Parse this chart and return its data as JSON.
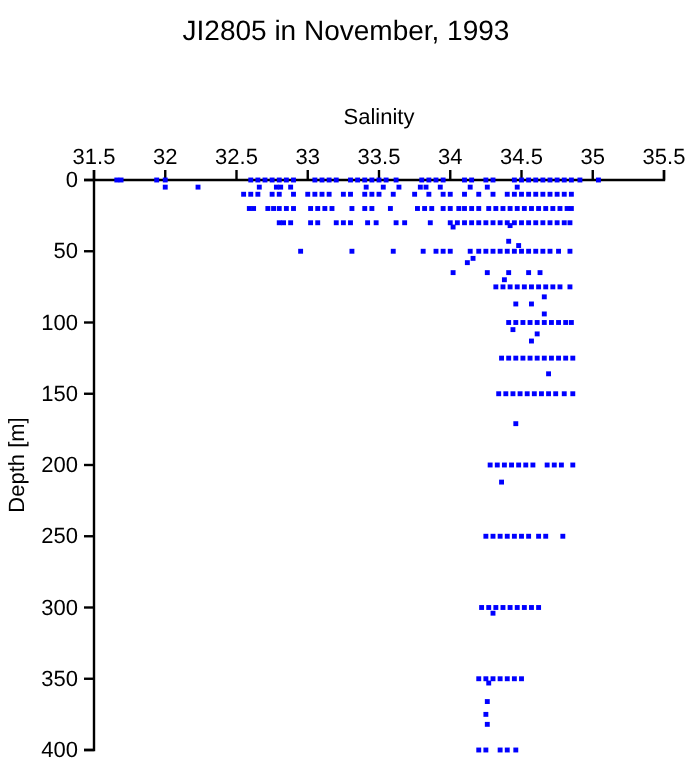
{
  "chart_data": {
    "type": "scatter",
    "title": "JI2805 in November, 1993",
    "xlabel": "Salinity",
    "ylabel": "Depth [m]",
    "xlim": [
      31.5,
      35.5
    ],
    "xticks": [
      31.5,
      32,
      32.5,
      33,
      33.5,
      34,
      34.5,
      35,
      35.5
    ],
    "ylim": [
      400,
      0
    ],
    "yticks": [
      0,
      50,
      100,
      150,
      200,
      250,
      300,
      350,
      400
    ],
    "grid": false,
    "marker": "square",
    "series": [
      {
        "color": "#0000ff",
        "x": [
          31.66,
          31.69,
          31.94,
          32.0,
          32.6,
          32.65,
          32.7,
          32.75,
          32.8,
          32.85,
          32.9,
          33.05,
          33.1,
          33.15,
          33.2,
          33.3,
          33.35,
          33.4,
          33.45,
          33.5,
          33.55,
          33.62,
          33.8,
          33.85,
          33.9,
          33.95,
          34.1,
          34.15,
          34.25,
          34.3,
          34.45,
          34.5,
          34.55,
          34.6,
          34.65,
          34.7,
          34.75,
          34.8,
          34.85,
          34.91,
          35.04
        ],
        "values": [
          0,
          0,
          0,
          0,
          0,
          0,
          0,
          0,
          0,
          0,
          0,
          0,
          0,
          0,
          0,
          0,
          0,
          0,
          0,
          0,
          0,
          0,
          0,
          0,
          0,
          0,
          0,
          0,
          0,
          0,
          0,
          0,
          0,
          0,
          0,
          0,
          0,
          0,
          0,
          0,
          0
        ]
      },
      {
        "color": "#0000ff",
        "x": [
          32.0,
          32.23,
          32.66,
          32.78,
          32.81,
          32.88,
          33.41,
          33.53,
          33.64,
          33.79,
          33.83,
          33.93,
          34.14,
          34.26,
          34.47
        ],
        "values": [
          5,
          5,
          5,
          5,
          5,
          5,
          5,
          5,
          5,
          5,
          5,
          5,
          5,
          5,
          5
        ]
      },
      {
        "color": "#0000ff",
        "x": [
          32.55,
          32.6,
          32.65,
          32.75,
          32.8,
          32.9,
          33.0,
          33.05,
          33.1,
          33.15,
          33.25,
          33.3,
          33.4,
          33.45,
          33.5,
          33.6,
          33.75,
          33.85,
          33.95,
          34.0,
          34.1,
          34.2,
          34.3,
          34.4,
          34.45,
          34.5,
          34.55,
          34.6,
          34.65,
          34.7,
          34.75,
          34.8,
          34.85
        ],
        "values": [
          10,
          10,
          10,
          10,
          10,
          10,
          10,
          10,
          10,
          10,
          10,
          10,
          10,
          10,
          10,
          10,
          10,
          10,
          10,
          10,
          10,
          10,
          10,
          10,
          10,
          10,
          10,
          10,
          10,
          10,
          10,
          10,
          10
        ]
      },
      {
        "color": "#0000ff",
        "x": [
          32.59,
          32.62,
          32.72,
          32.76,
          32.8,
          32.85,
          32.9,
          33.02,
          33.07,
          33.12,
          33.17,
          33.31,
          33.4,
          33.45,
          33.58,
          33.77,
          33.82,
          33.87,
          33.95,
          34.0,
          34.06,
          34.1,
          34.15,
          34.2,
          34.27,
          34.32,
          34.37,
          34.42,
          34.47,
          34.52,
          34.57,
          34.62,
          34.67,
          34.72,
          34.77,
          34.82,
          34.85
        ],
        "values": [
          20,
          20,
          20,
          20,
          20,
          20,
          20,
          20,
          20,
          20,
          20,
          20,
          20,
          20,
          20,
          20,
          20,
          20,
          20,
          20,
          20,
          20,
          20,
          20,
          20,
          20,
          20,
          20,
          20,
          20,
          20,
          20,
          20,
          20,
          20,
          20,
          20
        ]
      },
      {
        "color": "#0000ff",
        "x": [
          32.8,
          32.83,
          32.88,
          33.02,
          33.07,
          33.2,
          33.25,
          33.3,
          33.42,
          33.48,
          33.62,
          33.68,
          33.86,
          34.0,
          34.05,
          34.1,
          34.15,
          34.2,
          34.25,
          34.3,
          34.35,
          34.4,
          34.45,
          34.5,
          34.55,
          34.6,
          34.65,
          34.7,
          34.75,
          34.8,
          34.84
        ],
        "values": [
          30,
          30,
          30,
          30,
          30,
          30,
          30,
          30,
          30,
          30,
          30,
          30,
          30,
          30,
          30,
          30,
          30,
          30,
          30,
          30,
          30,
          30,
          30,
          30,
          30,
          30,
          30,
          30,
          30,
          30,
          30
        ]
      },
      {
        "color": "#0000ff",
        "x": [
          34.02,
          34.42,
          34.41,
          34.48,
          34.16,
          34.12,
          34.02,
          34.26,
          34.41,
          34.55,
          34.63,
          34.38
        ],
        "values": [
          33,
          32,
          43,
          46,
          55,
          58,
          65,
          65,
          65,
          65,
          65,
          70
        ]
      },
      {
        "color": "#0000ff",
        "x": [
          32.95,
          33.31,
          33.6,
          33.81,
          33.9,
          33.95,
          34.0,
          34.14,
          34.2,
          34.25,
          34.3,
          34.35,
          34.4,
          34.45,
          34.5,
          34.55,
          34.6,
          34.65,
          34.7,
          34.76,
          34.84
        ],
        "values": [
          50,
          50,
          50,
          50,
          50,
          50,
          50,
          50,
          50,
          50,
          50,
          50,
          50,
          50,
          50,
          50,
          50,
          50,
          50,
          50,
          50
        ]
      },
      {
        "color": "#0000ff",
        "x": [
          34.32,
          34.37,
          34.42,
          34.47,
          34.52,
          34.57,
          34.62,
          34.67,
          34.72,
          34.77,
          34.84
        ],
        "values": [
          75,
          75,
          75,
          75,
          75,
          75,
          75,
          75,
          75,
          75,
          75
        ]
      },
      {
        "color": "#0000ff",
        "x": [
          34.66,
          34.46,
          34.57,
          34.66,
          34.44,
          34.61,
          34.57,
          34.69,
          34.46,
          34.36,
          34.3,
          34.27,
          34.26,
          34.25,
          34.26
        ],
        "values": [
          82,
          87,
          87,
          94,
          105,
          108,
          113,
          136,
          171,
          212,
          304,
          353,
          366,
          375,
          382
        ]
      },
      {
        "color": "#0000ff",
        "x": [
          34.41,
          34.46,
          34.51,
          34.56,
          34.61,
          34.66,
          34.71,
          34.76,
          34.81,
          34.85
        ],
        "values": [
          100,
          100,
          100,
          100,
          100,
          100,
          100,
          100,
          100,
          100
        ]
      },
      {
        "color": "#0000ff",
        "x": [
          34.36,
          34.41,
          34.46,
          34.51,
          34.56,
          34.61,
          34.66,
          34.71,
          34.76,
          34.81,
          34.86
        ],
        "values": [
          125,
          125,
          125,
          125,
          125,
          125,
          125,
          125,
          125,
          125,
          125
        ]
      },
      {
        "color": "#0000ff",
        "x": [
          34.34,
          34.39,
          34.44,
          34.49,
          34.54,
          34.59,
          34.64,
          34.69,
          34.74,
          34.8,
          34.86
        ],
        "values": [
          150,
          150,
          150,
          150,
          150,
          150,
          150,
          150,
          150,
          150,
          150
        ]
      },
      {
        "color": "#0000ff",
        "x": [
          34.28,
          34.33,
          34.38,
          34.43,
          34.48,
          34.53,
          34.58,
          34.68,
          34.73,
          34.78,
          34.86
        ],
        "values": [
          200,
          200,
          200,
          200,
          200,
          200,
          200,
          200,
          200,
          200,
          200
        ]
      },
      {
        "color": "#0000ff",
        "x": [
          34.25,
          34.3,
          34.35,
          34.4,
          34.45,
          34.5,
          34.55,
          34.62,
          34.67,
          34.79
        ],
        "values": [
          250,
          250,
          250,
          250,
          250,
          250,
          250,
          250,
          250,
          250
        ]
      },
      {
        "color": "#0000ff",
        "x": [
          34.22,
          34.27,
          34.32,
          34.37,
          34.42,
          34.47,
          34.52,
          34.57,
          34.62
        ],
        "values": [
          300,
          300,
          300,
          300,
          300,
          300,
          300,
          300,
          300
        ]
      },
      {
        "color": "#0000ff",
        "x": [
          34.2,
          34.25,
          34.3,
          34.35,
          34.4,
          34.45,
          34.5
        ],
        "values": [
          350,
          350,
          350,
          350,
          350,
          350,
          350
        ]
      },
      {
        "color": "#0000ff",
        "x": [
          34.2,
          34.25,
          34.35,
          34.4,
          34.46
        ],
        "values": [
          400,
          400,
          400,
          400,
          400
        ]
      }
    ]
  }
}
